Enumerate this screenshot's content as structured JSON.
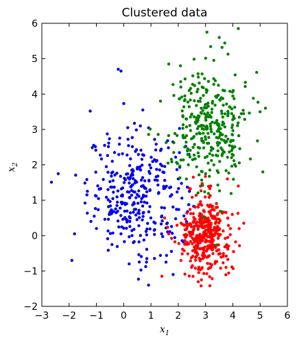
{
  "chart_data": {
    "type": "scatter",
    "title": "Clustered data",
    "xlabel": "x",
    "xlabel_subscript": "1",
    "ylabel": "x",
    "ylabel_subscript": "2",
    "xlim": [
      -3,
      6
    ],
    "ylim": [
      -2,
      6
    ],
    "x_ticks": [
      -3,
      -2,
      -1,
      0,
      1,
      2,
      3,
      4,
      5,
      6
    ],
    "y_ticks": [
      -2,
      -1,
      0,
      1,
      2,
      3,
      4,
      5,
      6
    ],
    "grid": false,
    "legend": "none",
    "series": [
      {
        "color": "#0000ee",
        "center": [
          0.5,
          1.2
        ],
        "spread": [
          0.9,
          0.85
        ],
        "count": 330,
        "points": [
          [
            -2.4,
            1.75
          ],
          [
            -1.9,
            -0.7
          ],
          [
            -1.8,
            0.05
          ],
          [
            -1.1,
            2.55
          ],
          [
            -0.7,
            2.55
          ],
          [
            -0.2,
            4.7
          ],
          [
            -0.1,
            4.65
          ],
          [
            0.7,
            3.55
          ],
          [
            0.15,
            3.05
          ],
          [
            -1.2,
            0.4
          ],
          [
            -1.0,
            0.2
          ],
          [
            -0.1,
            0.05
          ],
          [
            0.2,
            -0.8
          ],
          [
            0.85,
            -0.65
          ],
          [
            1.55,
            -0.75
          ],
          [
            2.0,
            1.6
          ]
        ]
      },
      {
        "color": "#ff0000",
        "center": [
          3.0,
          0.05
        ],
        "spread": [
          0.45,
          0.55
        ],
        "count": 380,
        "points": [
          [
            1.4,
            -1.15
          ],
          [
            2.85,
            -1.25
          ],
          [
            3.75,
            -0.9
          ],
          [
            4.4,
            0.35
          ],
          [
            4.2,
            1.4
          ],
          [
            3.8,
            1.6
          ],
          [
            2.55,
            1.65
          ],
          [
            1.65,
            0.05
          ],
          [
            1.5,
            0.5
          ]
        ]
      },
      {
        "color": "#008000",
        "center": [
          3.1,
          3.1
        ],
        "spread": [
          0.7,
          0.85
        ],
        "count": 330,
        "points": [
          [
            3.05,
            5.75
          ],
          [
            4.2,
            5.85
          ],
          [
            3.5,
            5.6
          ],
          [
            5.0,
            3.5
          ],
          [
            5.1,
            1.8
          ],
          [
            1.65,
            4.85
          ],
          [
            1.35,
            3.8
          ],
          [
            2.3,
            1.6
          ]
        ]
      }
    ]
  }
}
